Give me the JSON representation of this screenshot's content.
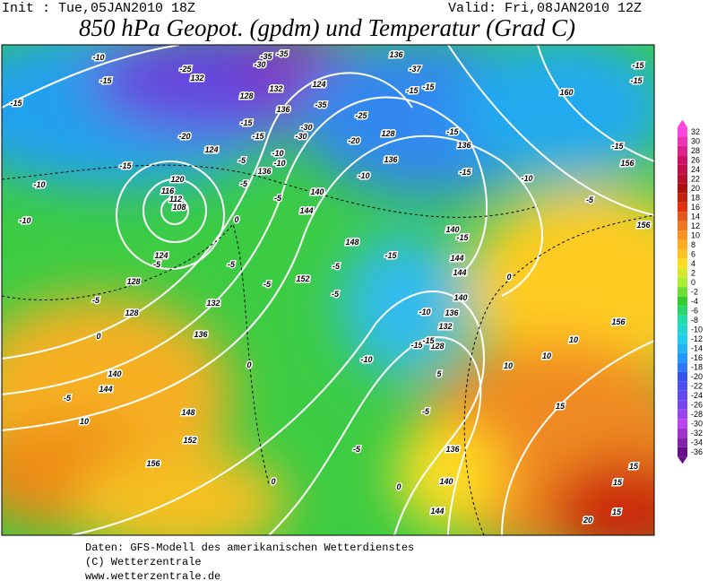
{
  "header": {
    "init": "Init : Tue,05JAN2010 18Z",
    "valid": "Valid: Fri,08JAN2010 12Z",
    "title": "850 hPa Geopot. (gpdm) und Temperatur (Grad C)"
  },
  "map_labels": [
    -10,
    -15,
    -15,
    -25,
    -30,
    -35,
    -35,
    132,
    128,
    132,
    124,
    136,
    -35,
    -25,
    -30,
    -30,
    -20,
    -20,
    -15,
    -15,
    124,
    -5,
    -10,
    -10,
    136,
    -5,
    128,
    136,
    140,
    144,
    -5,
    -15,
    -10,
    -10,
    120,
    116,
    112,
    108,
    136,
    -37,
    -15,
    -15,
    -15,
    136,
    -10,
    -10,
    -15,
    -5,
    160,
    -15,
    -15,
    -15,
    156,
    156,
    140,
    -15,
    148,
    -15,
    144,
    144,
    -5,
    152,
    -5,
    -5,
    124,
    -5,
    128,
    -5,
    132,
    128,
    136,
    0,
    -5,
    0,
    140,
    144,
    -5,
    10,
    148,
    152,
    156,
    0,
    -10,
    136,
    140,
    -10,
    128,
    -15,
    -15,
    132,
    -5,
    5,
    10,
    10,
    15,
    15,
    15,
    20,
    15,
    0,
    140,
    144,
    136,
    -5,
    0,
    0,
    156,
    10
  ],
  "colorbar": [
    32,
    30,
    28,
    26,
    24,
    22,
    20,
    18,
    16,
    14,
    12,
    10,
    8,
    6,
    4,
    2,
    0,
    -2,
    -4,
    -6,
    -8,
    -10,
    -12,
    -14,
    -16,
    -18,
    -20,
    -22,
    -24,
    -26,
    -28,
    -30,
    -32,
    -34,
    -36
  ],
  "footer": [
    "Daten: GFS-Modell des amerikanischen Wetterdienstes",
    "(C) Wetterzentrale",
    "www.wetterzentrale.de"
  ]
}
